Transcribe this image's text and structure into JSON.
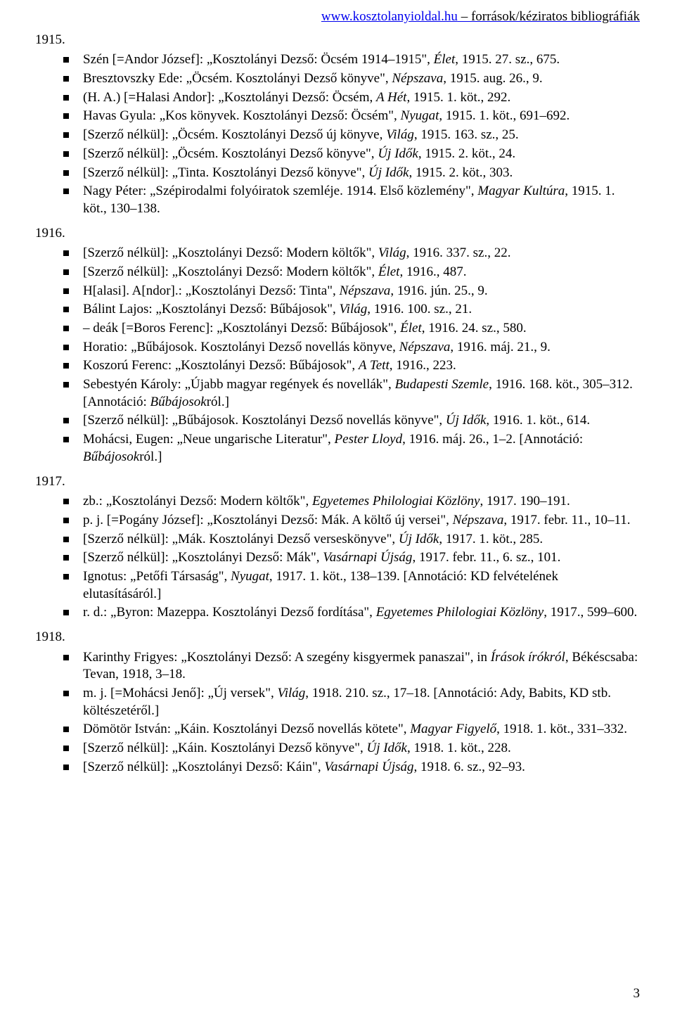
{
  "header": {
    "url": "www.kosztolanyioldal.hu",
    "suffix": " – források/kéziratos bibliográfiák"
  },
  "page_number": "3",
  "sections": [
    {
      "year": "1915.",
      "items": [
        "Szén [=Andor József]: „Kosztolányi Dezső: Öcsém 1914–1915\", <i>Élet</i>, 1915. 27. sz., 675.",
        "Bresztovszky Ede: „Öcsém. Kosztolányi Dezső könyve\", <i>Népszava</i>, 1915. aug. 26., 9.",
        "(H. A.) [=Halasi Andor]: „Kosztolányi Dezső: Öcsém, <i>A Hét</i>, 1915. 1. köt., 292.",
        "Havas Gyula: „Kos könyvek. Kosztolányi Dezső: Öcsém\", <i>Nyugat</i>, 1915. 1. köt., 691–692.",
        "[Szerző nélkül]: „Öcsém. Kosztolányi Dezső új könyve, <i>Világ</i>, 1915. 163. sz., 25.",
        "[Szerző nélkül]: „Öcsém. Kosztolányi Dezső könyve\", <i>Új Idők</i>, 1915. 2. köt., 24.",
        "[Szerző nélkül]: „Tinta. Kosztolányi Dezső könyve\", <i>Új Idők</i>, 1915. 2. köt., 303.",
        "Nagy Péter: „Szépirodalmi folyóiratok szemléje. 1914. Első közlemény\", <i>Magyar Kultúra</i>, 1915. 1. köt., 130–138."
      ]
    },
    {
      "year": "1916.",
      "items": [
        "[Szerző nélkül]: „Kosztolányi Dezső: Modern költők\", <i>Világ</i>, 1916. 337. sz., 22.",
        "[Szerző nélkül]: „Kosztolányi Dezső: Modern költők\", <i>Élet</i>, 1916., 487.",
        "H[alasi]. A[ndor].: „Kosztolányi Dezső: Tinta\", <i>Népszava</i>, 1916. jún. 25., 9.",
        "Bálint Lajos: „Kosztolányi Dezső: Bűbájosok\", <i>Világ</i>, 1916. 100. sz., 21.",
        "– deák [=Boros Ferenc]: „Kosztolányi Dezső: Bűbájosok\", <i>Élet</i>, 1916. 24. sz., 580.",
        "Horatio: „Bűbájosok. Kosztolányi Dezső novellás könyve, <i>Népszava</i>, 1916. máj. 21., 9.",
        "Koszorú Ferenc: „Kosztolányi Dezső: Bűbájosok\", <i>A Tett</i>, 1916., 223.",
        "Sebestyén Károly: „Újabb magyar regények és novellák\", <i>Budapesti Szemle</i>, 1916. 168. köt., 305–312. [Annotáció: <i>Bűbájosok</i>ról.]",
        "[Szerző nélkül]: „Bűbájosok. Kosztolányi Dezső novellás könyve\", <i>Új Idők</i>, 1916. 1. köt., 614.",
        "Mohácsi, Eugen: „Neue ungarische Literatur\", <i>Pester Lloyd</i>, 1916. máj. 26., 1–2. [Annotáció: <i>Bűbájosok</i>ról.]"
      ]
    },
    {
      "year": "1917.",
      "items": [
        "zb.: „Kosztolányi Dezső: Modern költők\", <i>Egyetemes Philologiai Közlöny</i>, 1917. 190–191.",
        "p. j. [=Pogány József]: „Kosztolányi Dezső: Mák. A költő új versei\", <i>Népszava</i>, 1917. febr. 11., 10–11.",
        "[Szerző nélkül]: „Mák. Kosztolányi Dezső verseskönyve\", <i>Új Idők</i>, 1917. 1. köt., 285.",
        "[Szerző nélkül]: „Kosztolányi Dezső: Mák\", <i>Vasárnapi Újság</i>, 1917. febr. 11., 6. sz., 101.",
        "Ignotus: „Petőfi Társaság\", <i>Nyugat</i>, 1917. 1. köt., 138–139. [Annotáció: KD felvételének elutasításáról.]",
        "r. d.: „Byron: Mazeppa. Kosztolányi Dezső fordítása\", <i>Egyetemes Philologiai Közlöny</i>, 1917., 599–600."
      ]
    },
    {
      "year": "1918.",
      "items": [
        "Karinthy Frigyes: „Kosztolányi Dezső: A szegény kisgyermek panaszai\", in <i>Írások írókról</i>, Békéscsaba: Tevan, 1918, 3–18.",
        "m. j. [=Mohácsi Jenő]: „Új versek\", <i>Világ</i>, 1918. 210. sz., 17–18. [Annotáció: Ady, Babits, KD stb. költészetéről.]",
        "Dömötör István: „Káin. Kosztolányi Dezső novellás kötete\", <i>Magyar Figyelő</i>, 1918. 1. köt., 331–332.",
        "[Szerző nélkül]: „Káin. Kosztolányi Dezső könyve\", <i>Új Idők</i>, 1918. 1. köt., 228.",
        "[Szerző nélkül]: „Kosztolányi Dezső: Káin\", <i>Vasárnapi Újság</i>, 1918. 6. sz., 92–93."
      ]
    }
  ]
}
